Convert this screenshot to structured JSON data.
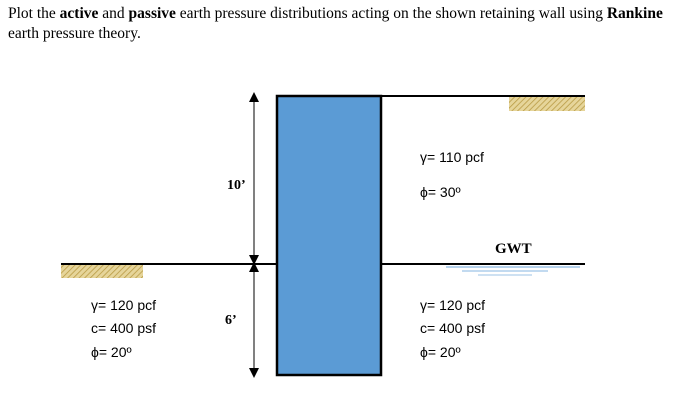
{
  "problem": {
    "part1": "Plot the ",
    "bold1": "active",
    "part2": " and ",
    "bold2": "passive",
    "part3": " earth pressure distributions acting on the shown retaining wall using ",
    "bold3": "Rankine",
    "part4": " earth pressure theory."
  },
  "dimensions": {
    "upper": "10’",
    "lower": "6’"
  },
  "gwt_label": "GWT",
  "soil_upper_right": {
    "gamma": "γ= 110 pcf",
    "phi": "ϕ= 30º"
  },
  "soil_lower_left": {
    "gamma": "γ= 120 pcf",
    "c": "c= 400 psf",
    "phi": "ϕ= 20º"
  },
  "soil_lower_right": {
    "gamma": "γ= 120 pcf",
    "c": "c= 400 psf",
    "phi": "ϕ= 20º"
  },
  "colors": {
    "wall": "#5B9BD5",
    "hatch": "#D8C37A",
    "water": "#9DC3E6"
  }
}
